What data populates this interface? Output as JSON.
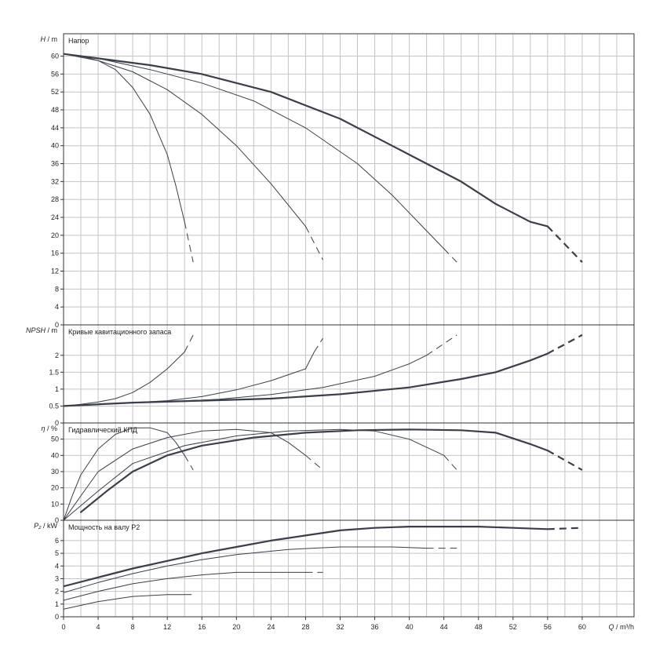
{
  "chart_data": {
    "type": "line",
    "x_axis": {
      "label": "Q / m³/h",
      "range": [
        0,
        66
      ],
      "ticks": [
        0,
        4,
        8,
        12,
        16,
        20,
        24,
        28,
        32,
        36,
        40,
        44,
        48,
        52,
        56,
        60
      ]
    },
    "panels": [
      {
        "id": "head",
        "title": "Напор",
        "ylabel": "H / m",
        "ylim": [
          0,
          65
        ],
        "yticks": [
          0,
          4,
          8,
          12,
          16,
          20,
          24,
          28,
          32,
          36,
          40,
          44,
          48,
          52,
          56,
          60
        ],
        "series": [
          {
            "solid": [
              [
                0,
                60.5
              ],
              [
                2,
                60
              ],
              [
                4,
                59
              ],
              [
                6,
                57
              ],
              [
                8,
                53
              ],
              [
                10,
                47
              ],
              [
                12,
                38
              ],
              [
                13,
                31
              ],
              [
                14,
                23
              ]
            ],
            "dashed": [
              [
                14,
                23
              ],
              [
                15,
                14
              ]
            ],
            "width": 1
          },
          {
            "solid": [
              [
                0,
                60.5
              ],
              [
                4,
                59
              ],
              [
                8,
                56.5
              ],
              [
                12,
                52.5
              ],
              [
                16,
                47
              ],
              [
                20,
                40
              ],
              [
                24,
                31.5
              ],
              [
                28,
                22
              ]
            ],
            "dashed": [
              [
                28,
                22
              ],
              [
                30,
                14.5
              ]
            ],
            "width": 1
          },
          {
            "solid": [
              [
                0,
                60.5
              ],
              [
                4,
                59.5
              ],
              [
                10,
                57
              ],
              [
                16,
                54
              ],
              [
                22,
                50
              ],
              [
                28,
                44
              ],
              [
                34,
                36
              ],
              [
                38,
                29
              ],
              [
                42,
                21
              ],
              [
                44,
                17
              ]
            ],
            "dashed": [
              [
                44,
                17
              ],
              [
                45.5,
                14
              ]
            ],
            "width": 1
          },
          {
            "solid": [
              [
                0,
                60.5
              ],
              [
                4,
                59.5
              ],
              [
                10,
                58
              ],
              [
                16,
                56
              ],
              [
                24,
                52
              ],
              [
                32,
                46
              ],
              [
                40,
                38
              ],
              [
                46,
                32
              ],
              [
                50,
                27
              ],
              [
                54,
                23
              ],
              [
                56,
                22
              ]
            ],
            "dashed": [
              [
                56,
                22
              ],
              [
                60,
                14
              ]
            ],
            "width": 2.2
          }
        ]
      },
      {
        "id": "npsh",
        "title": "Кривые кавитационного запаса",
        "ylabel": "NPSH / m",
        "ylim": [
          0,
          2.9
        ],
        "yticks": [
          0,
          0.5,
          1,
          1.5,
          2
        ],
        "series": [
          {
            "solid": [
              [
                0,
                0.5
              ],
              [
                2,
                0.55
              ],
              [
                4,
                0.62
              ],
              [
                6,
                0.72
              ],
              [
                8,
                0.9
              ],
              [
                10,
                1.2
              ],
              [
                12,
                1.6
              ],
              [
                14,
                2.1
              ]
            ],
            "dashed": [
              [
                14,
                2.1
              ],
              [
                15,
                2.6
              ]
            ],
            "width": 1
          },
          {
            "solid": [
              [
                0,
                0.5
              ],
              [
                4,
                0.56
              ],
              [
                8,
                0.6
              ],
              [
                12,
                0.66
              ],
              [
                16,
                0.78
              ],
              [
                20,
                0.98
              ],
              [
                24,
                1.25
              ],
              [
                28,
                1.6
              ],
              [
                29,
                2.1
              ]
            ],
            "dashed": [
              [
                29,
                2.1
              ],
              [
                30,
                2.5
              ]
            ],
            "width": 1
          },
          {
            "solid": [
              [
                0,
                0.5
              ],
              [
                6,
                0.58
              ],
              [
                12,
                0.63
              ],
              [
                18,
                0.7
              ],
              [
                24,
                0.84
              ],
              [
                30,
                1.05
              ],
              [
                36,
                1.38
              ],
              [
                40,
                1.75
              ],
              [
                42,
                2
              ]
            ],
            "dashed": [
              [
                42,
                2
              ],
              [
                45.5,
                2.6
              ]
            ],
            "width": 1
          },
          {
            "solid": [
              [
                0,
                0.5
              ],
              [
                8,
                0.6
              ],
              [
                16,
                0.66
              ],
              [
                24,
                0.72
              ],
              [
                32,
                0.85
              ],
              [
                40,
                1.05
              ],
              [
                46,
                1.3
              ],
              [
                50,
                1.5
              ],
              [
                54,
                1.85
              ],
              [
                56,
                2.05
              ]
            ],
            "dashed": [
              [
                56,
                2.05
              ],
              [
                60,
                2.6
              ]
            ],
            "width": 2.2
          }
        ]
      },
      {
        "id": "efficiency",
        "title": "Гидравлический КПД",
        "ylabel": "η / %",
        "ylim": [
          0,
          60
        ],
        "yticks": [
          0,
          10,
          20,
          30,
          40,
          50
        ],
        "series": [
          {
            "solid": [
              [
                0,
                0
              ],
              [
                1,
                15
              ],
              [
                2,
                28
              ],
              [
                4,
                44
              ],
              [
                6,
                53
              ],
              [
                8,
                57
              ],
              [
                10,
                57
              ],
              [
                12,
                54
              ],
              [
                13,
                48
              ],
              [
                14,
                40
              ]
            ],
            "dashed": [
              [
                14,
                40
              ],
              [
                15,
                31
              ]
            ],
            "width": 1
          },
          {
            "solid": [
              [
                0,
                0
              ],
              [
                2,
                15
              ],
              [
                4,
                30
              ],
              [
                8,
                44
              ],
              [
                12,
                51
              ],
              [
                16,
                55
              ],
              [
                20,
                56
              ],
              [
                24,
                54
              ],
              [
                26,
                48
              ],
              [
                28,
                40
              ]
            ],
            "dashed": [
              [
                28,
                40
              ],
              [
                30,
                31
              ]
            ],
            "width": 1
          },
          {
            "solid": [
              [
                0,
                0
              ],
              [
                4,
                18
              ],
              [
                8,
                35
              ],
              [
                14,
                46
              ],
              [
                20,
                52
              ],
              [
                26,
                55
              ],
              [
                32,
                56
              ],
              [
                36,
                55
              ],
              [
                40,
                50
              ],
              [
                44,
                40
              ]
            ],
            "dashed": [
              [
                44,
                40
              ],
              [
                45.5,
                31
              ]
            ],
            "width": 1
          },
          {
            "solid": [
              [
                2,
                5
              ],
              [
                5,
                18
              ],
              [
                8,
                30
              ],
              [
                12,
                40
              ],
              [
                16,
                46
              ],
              [
                22,
                51
              ],
              [
                28,
                54
              ],
              [
                34,
                55.5
              ],
              [
                40,
                56
              ],
              [
                46,
                55.5
              ],
              [
                50,
                54
              ],
              [
                54,
                47
              ],
              [
                56,
                43
              ]
            ],
            "dashed": [
              [
                56,
                43
              ],
              [
                60,
                31
              ]
            ],
            "width": 2.2
          }
        ]
      },
      {
        "id": "power",
        "title": "Мощность на валу P2",
        "ylabel": "P₂ / kW",
        "ylim": [
          0,
          7.6
        ],
        "yticks": [
          0,
          1,
          2,
          3,
          4,
          5,
          6
        ],
        "series": [
          {
            "solid": [
              [
                0,
                0.6
              ],
              [
                4,
                1.2
              ],
              [
                8,
                1.6
              ],
              [
                12,
                1.75
              ],
              [
                14,
                1.75
              ]
            ],
            "dashed": [
              [
                14,
                1.75
              ],
              [
                15,
                1.75
              ]
            ],
            "width": 1
          },
          {
            "solid": [
              [
                0,
                1.3
              ],
              [
                4,
                2
              ],
              [
                8,
                2.6
              ],
              [
                12,
                3
              ],
              [
                16,
                3.3
              ],
              [
                20,
                3.5
              ],
              [
                24,
                3.5
              ],
              [
                28,
                3.5
              ]
            ],
            "dashed": [
              [
                28,
                3.5
              ],
              [
                30,
                3.5
              ]
            ],
            "width": 1
          },
          {
            "solid": [
              [
                0,
                1.9
              ],
              [
                4,
                2.7
              ],
              [
                8,
                3.4
              ],
              [
                12,
                4
              ],
              [
                16,
                4.5
              ],
              [
                20,
                4.9
              ],
              [
                26,
                5.3
              ],
              [
                32,
                5.5
              ],
              [
                38,
                5.5
              ],
              [
                42,
                5.4
              ]
            ],
            "dashed": [
              [
                42,
                5.4
              ],
              [
                45.5,
                5.4
              ]
            ],
            "width": 1
          },
          {
            "solid": [
              [
                0,
                2.4
              ],
              [
                4,
                3.1
              ],
              [
                8,
                3.8
              ],
              [
                12,
                4.4
              ],
              [
                16,
                5
              ],
              [
                20,
                5.5
              ],
              [
                24,
                6
              ],
              [
                28,
                6.4
              ],
              [
                32,
                6.8
              ],
              [
                36,
                7
              ],
              [
                40,
                7.1
              ],
              [
                44,
                7.1
              ],
              [
                48,
                7.1
              ],
              [
                52,
                7
              ],
              [
                56,
                6.9
              ]
            ],
            "dashed": [
              [
                56,
                6.9
              ],
              [
                60,
                7
              ]
            ],
            "width": 2.2
          }
        ]
      }
    ],
    "grid": true,
    "line_color": "#3a3f4a"
  }
}
